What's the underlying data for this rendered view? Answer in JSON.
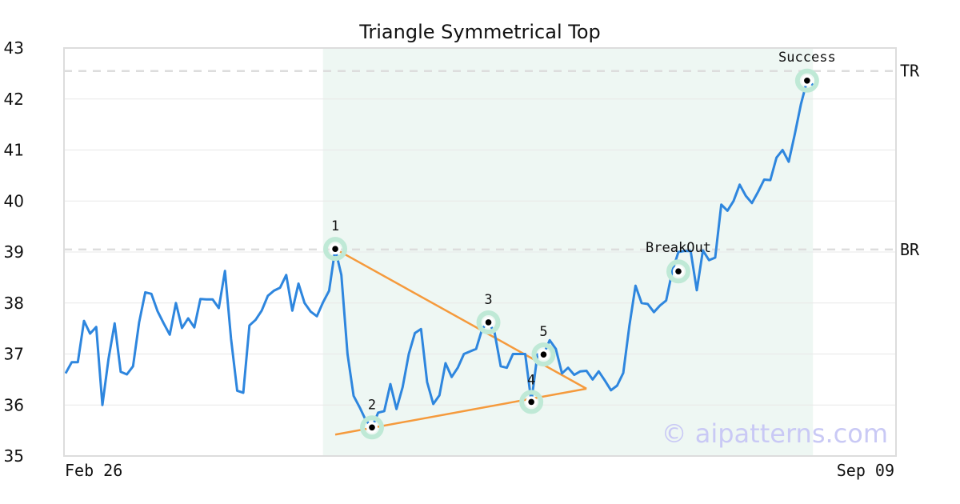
{
  "chart_data": {
    "type": "line",
    "title": "Triangle Symmetrical Top",
    "xlabel": "",
    "ylabel": "",
    "ylim": [
      35,
      43
    ],
    "yticks": [
      35,
      36,
      37,
      38,
      39,
      40,
      41,
      42,
      43
    ],
    "x_tick_labels": [
      "Feb 26",
      "Sep 09"
    ],
    "grid": true,
    "series": [
      {
        "color": "#2e86de",
        "values": [
          36.62,
          36.84,
          36.84,
          37.65,
          37.4,
          37.53,
          36.0,
          36.9,
          37.6,
          36.65,
          36.6,
          36.76,
          37.62,
          38.21,
          38.18,
          37.84,
          37.6,
          37.38,
          38.0,
          37.51,
          37.7,
          37.52,
          38.08,
          38.07,
          38.07,
          37.9,
          38.63,
          37.3,
          36.28,
          36.24,
          37.56,
          37.67,
          37.85,
          38.14,
          38.24,
          38.3,
          38.55,
          37.85,
          38.38,
          38.0,
          37.83,
          37.74,
          38.01,
          38.24,
          39.06,
          38.55,
          37.0,
          36.18,
          35.95,
          35.7,
          35.56,
          35.85,
          35.88,
          36.41,
          35.92,
          36.35,
          37.0,
          37.41,
          37.49,
          36.45,
          36.02,
          36.19,
          36.82,
          36.55,
          36.73,
          37.0,
          37.05,
          37.1,
          37.5,
          37.62,
          37.42,
          36.76,
          36.73,
          37.0,
          37.0,
          37.0,
          36.06,
          36.99,
          36.99,
          37.27,
          37.1,
          36.62,
          36.73,
          36.59,
          36.66,
          36.67,
          36.5,
          36.66,
          36.48,
          36.29,
          36.38,
          36.63,
          37.55,
          38.34,
          38.0,
          37.98,
          37.82,
          37.95,
          38.05,
          38.62,
          39.0,
          39.02,
          39.02,
          38.25,
          39.03,
          38.84,
          38.89,
          39.93,
          39.81,
          40.0,
          40.32,
          40.1,
          39.96,
          40.18,
          40.42,
          40.41,
          40.85,
          41.0,
          40.77,
          41.31,
          41.9,
          42.36,
          42.27
        ]
      }
    ],
    "highlight_region": {
      "start_index": 42,
      "end_index": 120,
      "color": "#eef7f3"
    },
    "levels": [
      {
        "label": "TR",
        "y": 42.55
      },
      {
        "label": "BR",
        "y": 39.05
      }
    ],
    "trendlines": [
      {
        "color": "#f59a3c",
        "from": {
          "index": 44,
          "y": 39.06
        },
        "to": {
          "index": 85,
          "y": 36.32
        }
      },
      {
        "color": "#f59a3c",
        "from": {
          "index": 44,
          "y": 35.42
        },
        "to": {
          "index": 85,
          "y": 36.32
        }
      }
    ],
    "points": [
      {
        "label": "1",
        "index": 44,
        "y": 39.06
      },
      {
        "label": "2",
        "index": 50,
        "y": 35.56
      },
      {
        "label": "3",
        "index": 69,
        "y": 37.62
      },
      {
        "label": "4",
        "index": 76,
        "y": 36.06
      },
      {
        "label": "5",
        "index": 78,
        "y": 36.99
      },
      {
        "label": "BreakOut",
        "index": 100,
        "y": 38.62
      },
      {
        "label": "Success",
        "index": 121,
        "y": 42.36
      }
    ]
  },
  "watermark": "© aipatterns.com"
}
